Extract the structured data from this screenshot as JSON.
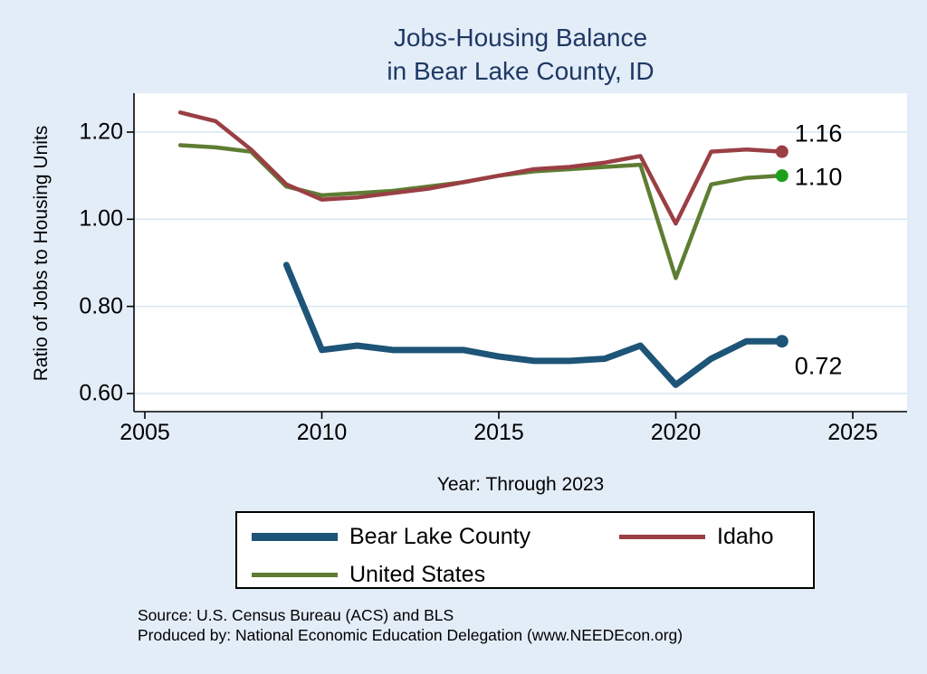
{
  "title_line1": "Jobs-Housing Balance",
  "title_line2": "in Bear Lake County, ID",
  "source_line1": "Source: U.S. Census Bureau (ACS) and BLS",
  "source_line2": "Produced by: National Economic Education Delegation (www.NEEDEcon.org)",
  "colors": {
    "background": "#e3edf8",
    "plot_bg": "#ffffff",
    "grid": "#d9e7f3",
    "axis": "#000000",
    "title": "#1f3864",
    "navy": "#1d5477",
    "maroon": "#9a3f44",
    "olive": "#5e7d33",
    "marker_green": "#1ca01c"
  },
  "legend": {
    "items": [
      {
        "label": "Bear Lake County",
        "color": "#1d5477",
        "thickness": 9,
        "col": 1,
        "row": 1
      },
      {
        "label": "Idaho",
        "color": "#9a3f44",
        "thickness": 5,
        "col": 2,
        "row": 1
      },
      {
        "label": "United States",
        "color": "#5e7d33",
        "thickness": 5,
        "col": 1,
        "row": 2
      }
    ]
  },
  "chart_data": {
    "type": "line",
    "title": "Jobs-Housing Balance in Bear Lake County, ID",
    "xlabel": "Year: Through 2023",
    "ylabel": "Ratio of Jobs to Housing Units",
    "xlim": [
      2004.7,
      2026.5
    ],
    "ylim": [
      0.55,
      1.28
    ],
    "x_ticks": [
      2005,
      2010,
      2015,
      2020,
      2025
    ],
    "y_ticks": [
      0.6,
      0.8,
      1.0,
      1.2
    ],
    "y_tick_labels": [
      "0.60",
      "0.80",
      "1.00",
      "1.20"
    ],
    "grid": true,
    "legend_position": "bottom",
    "series": [
      {
        "name": "Bear Lake County",
        "color": "#1d5477",
        "marker_color": "#1d5477",
        "width": 7,
        "end_label": "0.72",
        "end_label_offset": [
          14,
          28
        ],
        "x": [
          2009,
          2010,
          2011,
          2012,
          2013,
          2014,
          2015,
          2016,
          2017,
          2018,
          2019,
          2020,
          2021,
          2022,
          2023
        ],
        "values": [
          0.895,
          0.7,
          0.71,
          0.7,
          0.7,
          0.7,
          0.685,
          0.675,
          0.675,
          0.68,
          0.71,
          0.62,
          0.68,
          0.72,
          0.72
        ]
      },
      {
        "name": "Idaho",
        "color": "#9a3f44",
        "marker_color": "#9a3f44",
        "width": 4.5,
        "end_label": "1.16",
        "end_label_offset": [
          14,
          -20
        ],
        "x": [
          2006,
          2007,
          2008,
          2009,
          2010,
          2011,
          2012,
          2013,
          2014,
          2015,
          2016,
          2017,
          2018,
          2019,
          2020,
          2021,
          2022,
          2023
        ],
        "values": [
          1.245,
          1.225,
          1.16,
          1.08,
          1.045,
          1.05,
          1.06,
          1.07,
          1.085,
          1.1,
          1.115,
          1.12,
          1.13,
          1.145,
          0.99,
          1.155,
          1.16,
          1.155
        ]
      },
      {
        "name": "United States",
        "color": "#5e7d33",
        "marker_color": "#1ca01c",
        "width": 4.5,
        "end_label": "1.10",
        "end_label_offset": [
          14,
          2
        ],
        "x": [
          2006,
          2007,
          2008,
          2009,
          2010,
          2011,
          2012,
          2013,
          2014,
          2015,
          2016,
          2017,
          2018,
          2019,
          2020,
          2021,
          2022,
          2023
        ],
        "values": [
          1.17,
          1.165,
          1.155,
          1.075,
          1.055,
          1.06,
          1.065,
          1.075,
          1.085,
          1.1,
          1.11,
          1.115,
          1.12,
          1.125,
          0.865,
          1.08,
          1.095,
          1.1
        ]
      }
    ]
  }
}
